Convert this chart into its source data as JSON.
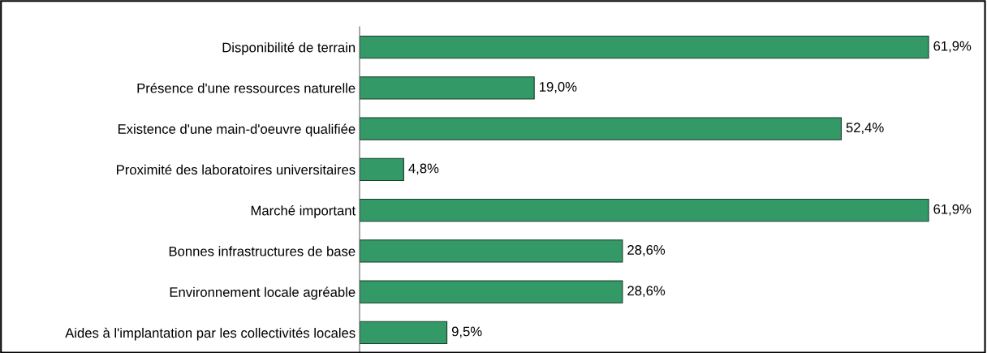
{
  "chart_data": {
    "type": "bar",
    "orientation": "horizontal",
    "categories": [
      "Disponibilité de terrain",
      "Présence d'une ressources naturelle",
      "Existence d'une main-d'oeuvre qualifiée",
      "Proximité des laboratoires universitaires",
      "Marché important",
      "Bonnes infrastructures de base",
      "Environnement locale agréable",
      "Aides à l'implantation par les collectivités locales"
    ],
    "values": [
      61.9,
      19.0,
      52.4,
      4.8,
      61.9,
      28.6,
      28.6,
      9.5
    ],
    "value_labels": [
      "61,9%",
      "19,0%",
      "52,4%",
      "4,8%",
      "61,9%",
      "28,6%",
      "28,6%",
      "9,5%"
    ],
    "color": "#339966",
    "grid": false,
    "legend": false,
    "tick_labels": "y"
  }
}
